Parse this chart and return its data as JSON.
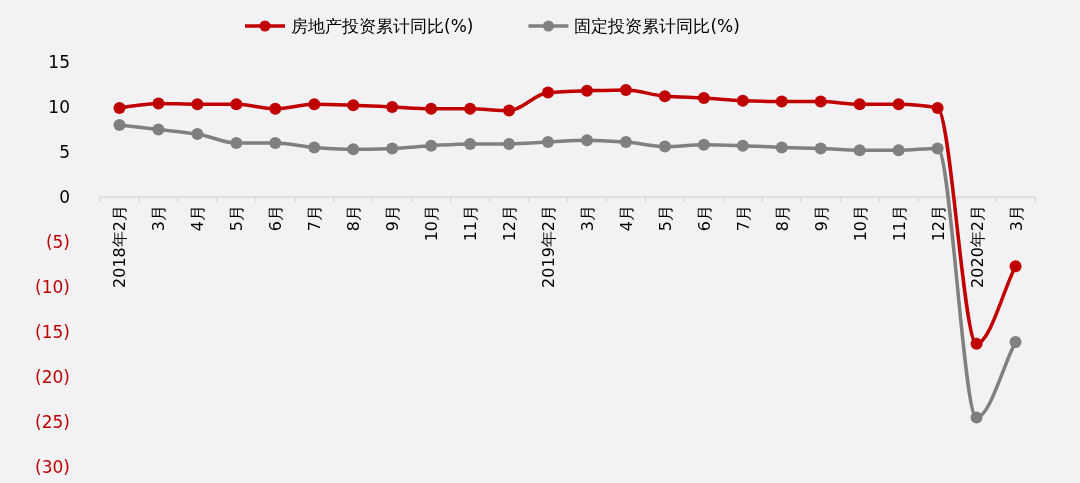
{
  "chart_data": {
    "type": "line",
    "categories": [
      "2018年2月",
      "3月",
      "4月",
      "5月",
      "6月",
      "7月",
      "8月",
      "9月",
      "10月",
      "11月",
      "12月",
      "2019年2月",
      "3月",
      "4月",
      "5月",
      "6月",
      "7月",
      "8月",
      "9月",
      "10月",
      "11月",
      "12月",
      "2020年2月",
      "3月"
    ],
    "series": [
      {
        "name": "房地产投资累计同比(%)",
        "color": "#c00000",
        "values": [
          9.9,
          10.4,
          10.3,
          10.3,
          9.8,
          10.3,
          10.2,
          10.0,
          9.8,
          9.8,
          9.6,
          11.6,
          11.8,
          11.9,
          11.2,
          11.0,
          10.7,
          10.6,
          10.6,
          10.3,
          10.3,
          9.9,
          -16.3,
          -7.7
        ]
      },
      {
        "name": "固定投资累计同比(%)",
        "color": "#808080",
        "values": [
          8.0,
          7.5,
          7.0,
          6.0,
          6.0,
          5.5,
          5.3,
          5.4,
          5.7,
          5.9,
          5.9,
          6.1,
          6.3,
          6.1,
          5.6,
          5.8,
          5.7,
          5.5,
          5.4,
          5.2,
          5.2,
          5.4,
          -24.5,
          -16.1
        ]
      }
    ],
    "ylim": [
      -30,
      15
    ],
    "yticks": [
      15,
      10,
      5,
      0,
      {
        "value": -5,
        "label": "(5)"
      },
      {
        "value": -10,
        "label": "(10)"
      },
      {
        "value": -15,
        "label": "(15)"
      },
      {
        "value": -20,
        "label": "(20)"
      },
      {
        "value": -25,
        "label": "(25)"
      },
      {
        "value": -30,
        "label": "(30)"
      }
    ],
    "grid": false,
    "legend": "top",
    "marker": "circle",
    "line_style": "solid"
  }
}
